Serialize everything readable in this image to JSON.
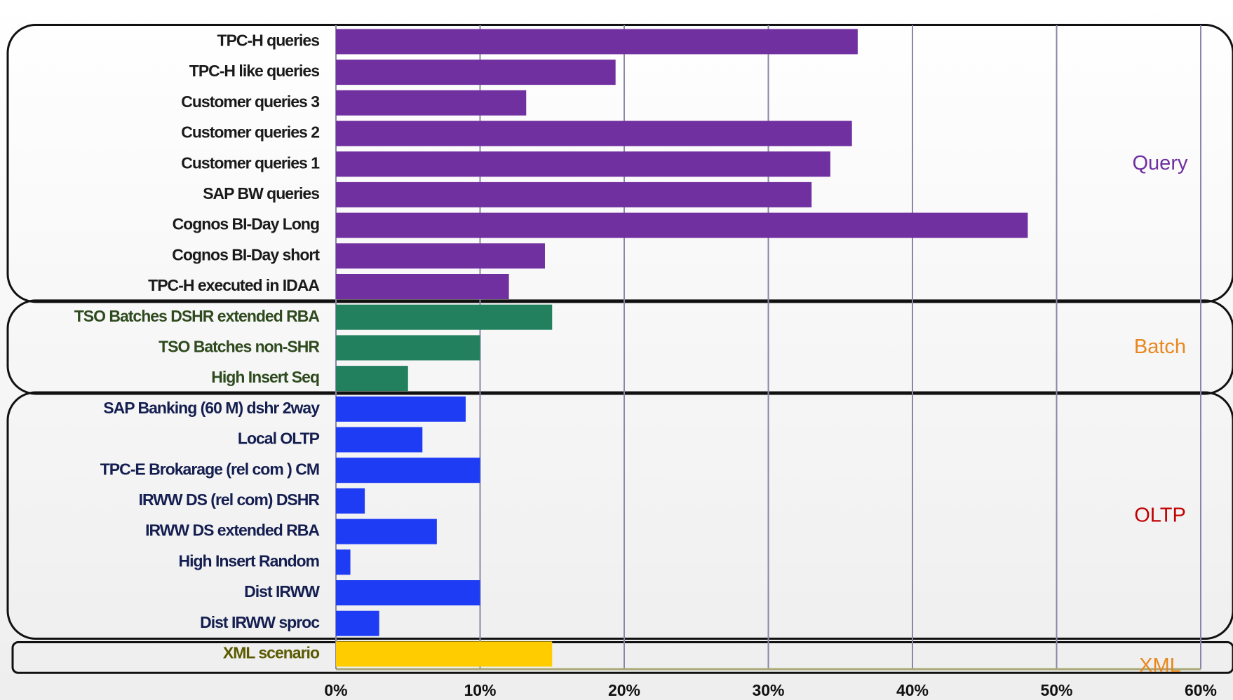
{
  "chart_data": {
    "type": "bar",
    "xlim": [
      0,
      60
    ],
    "xticks": [
      {
        "value": 0,
        "label": "0%"
      },
      {
        "value": 10,
        "label": "10%"
      },
      {
        "value": 20,
        "label": "20%"
      },
      {
        "value": 30,
        "label": "30%"
      },
      {
        "value": 40,
        "label": "40%"
      },
      {
        "value": 50,
        "label": "50%"
      },
      {
        "value": 60,
        "label": "60%"
      }
    ],
    "grid": true,
    "groups": [
      {
        "label": "Query",
        "color": "#7030a0",
        "label_color": "#7030a0",
        "text_color": "#1a1a1a",
        "categories": [
          "TPC-H queries",
          "TPC-H like queries",
          "Customer queries 3",
          "Customer queries 2",
          "Customer queries 1",
          "SAP BW queries",
          "Cognos BI-Day Long",
          "Cognos BI-Day short",
          "TPC-H executed in IDAA"
        ],
        "values": [
          36.2,
          19.4,
          13.2,
          35.8,
          34.3,
          33.0,
          48.0,
          14.5,
          12.0
        ]
      },
      {
        "label": "Batch",
        "color": "#23805f",
        "label_color": "#e8871e",
        "text_color": "#2e4a1e",
        "categories": [
          "TSO Batches DSHR extended RBA",
          "TSO Batches non-SHR",
          "High Insert Seq"
        ],
        "values": [
          15.0,
          10.0,
          5.0
        ]
      },
      {
        "label": "OLTP",
        "color": "#1f3cf5",
        "label_color": "#c00000",
        "text_color": "#141e50",
        "categories": [
          "SAP Banking (60 M) dshr  2way",
          "Local OLTP",
          "TPC-E Brokarage (rel com ) CM",
          "IRWW DS (rel com)  DSHR",
          "IRWW DS extended RBA",
          "High Insert Random",
          "Dist IRWW",
          "Dist IRWW sproc"
        ],
        "values": [
          9.0,
          6.0,
          10.0,
          2.0,
          7.0,
          1.0,
          10.0,
          3.0
        ]
      },
      {
        "label": "XML",
        "color": "#ffcc00",
        "label_color": "#e8871e",
        "text_color": "#5a5a00",
        "categories": [
          "XML scenario"
        ],
        "values": [
          15.0
        ]
      }
    ]
  }
}
